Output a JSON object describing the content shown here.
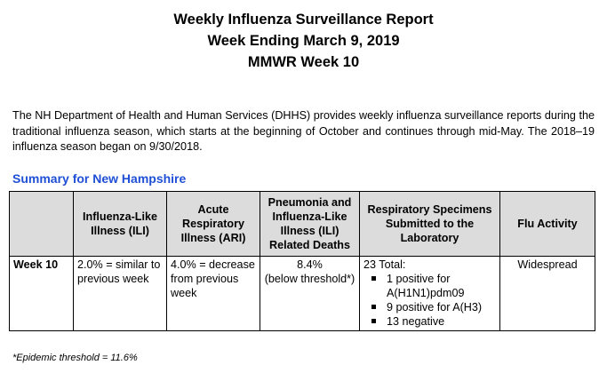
{
  "header": {
    "title_line1": "Weekly Influenza Surveillance Report",
    "title_line2": "Week Ending March 9, 2019",
    "title_line3": "MMWR Week 10"
  },
  "intro": "The NH Department of Health and Human Services (DHHS) provides weekly influenza surveillance reports during the traditional influenza season, which starts at the beginning of October and continues through mid-May. The 2018–19 influenza season began on 9/30/2018.",
  "summary": {
    "heading": "Summary for New Hampshire",
    "columns": [
      "",
      "Influenza-Like Illness (ILI)",
      "Acute Respiratory Illness (ARI)",
      "Pneumonia and Influenza-Like Illness (ILI) Related Deaths",
      "Respiratory Specimens Submitted to the Laboratory",
      "Flu Activity"
    ],
    "row": {
      "label": "Week 10",
      "ili": "2.0% = similar to previous week",
      "ari": "4.0% = decrease from previous week",
      "pi_deaths_value": "8.4%",
      "pi_deaths_note": "(below threshold*)",
      "specimens_total": "23 Total:",
      "specimens_items": [
        "1 positive for A(H1N1)pdm09",
        "9 positive for A(H3)",
        "13 negative"
      ],
      "flu_activity": "Widespread"
    }
  },
  "footnote": "*Epidemic threshold = 11.6%",
  "colors": {
    "heading_blue": "#1f4fd6",
    "header_gray": "#dcdcdc"
  }
}
